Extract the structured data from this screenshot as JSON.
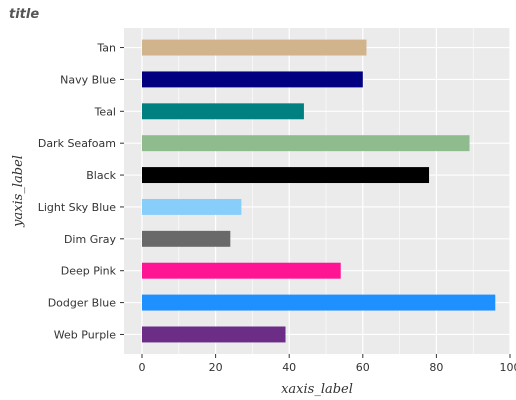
{
  "chart_data": {
    "type": "bar",
    "orientation": "horizontal",
    "title": "title",
    "xlabel": "xaxis_label",
    "ylabel": "yaxis_label",
    "xlim": [
      0,
      100
    ],
    "x_ticks": [
      0,
      20,
      40,
      60,
      80,
      100
    ],
    "x_tick_labels": [
      "0",
      "20",
      "40",
      "60",
      "80",
      "100"
    ],
    "grid": true,
    "categories": [
      "Web Purple",
      "Dodger Blue",
      "Deep Pink",
      "Dim Gray",
      "Light Sky Blue",
      "Black",
      "Dark Seafoam",
      "Teal",
      "Navy Blue",
      "Tan"
    ],
    "values": [
      39,
      96,
      54,
      24,
      27,
      78,
      89,
      44,
      60,
      61
    ],
    "colors": [
      "#6b2d86",
      "#1e90ff",
      "#ff1493",
      "#696969",
      "#87cefa",
      "#000000",
      "#8fbc8f",
      "#008080",
      "#000080",
      "#d2b48c"
    ]
  }
}
